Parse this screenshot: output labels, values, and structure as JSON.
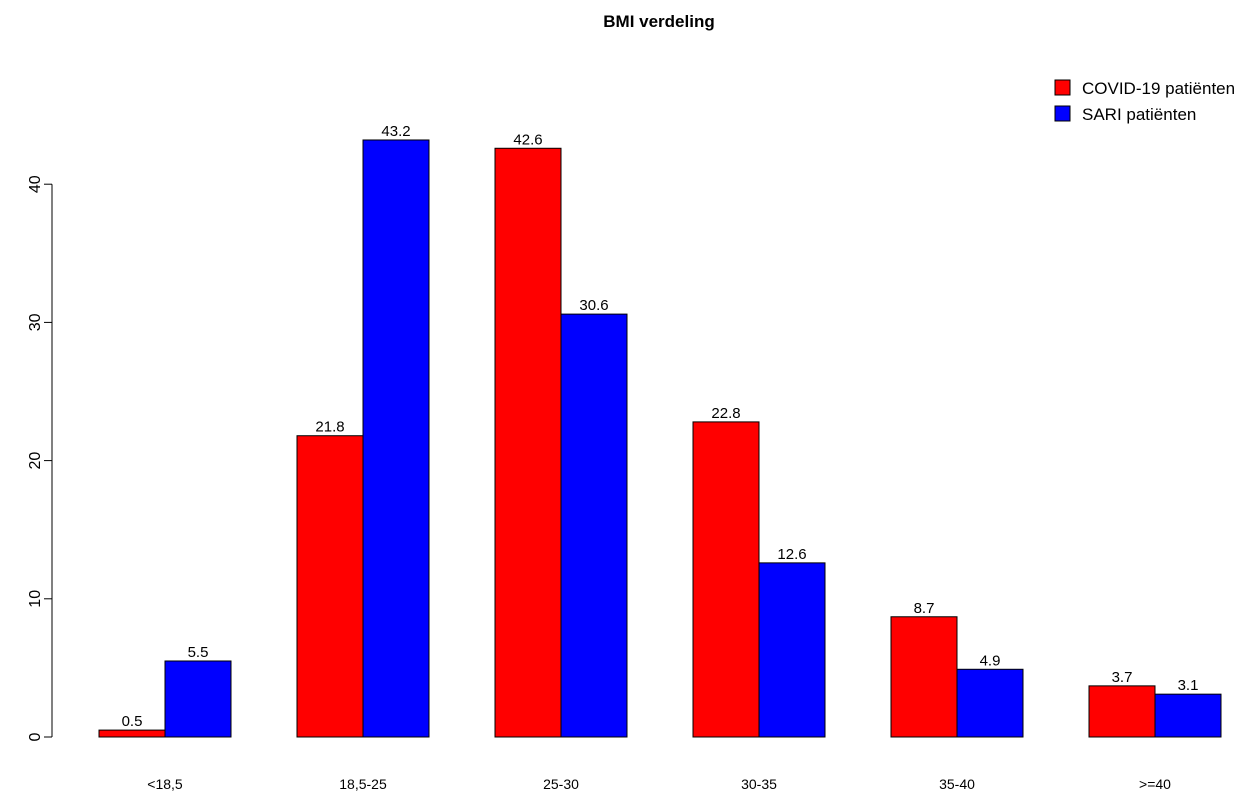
{
  "chart_data": {
    "type": "bar",
    "title": "BMI verdeling",
    "xlabel": "",
    "ylabel": "",
    "categories": [
      "<18,5",
      "18,5-25",
      "25-30",
      "30-35",
      "35-40",
      ">=40"
    ],
    "series": [
      {
        "name": "COVID-19 patiënten",
        "color": "#ff0000",
        "values": [
          0.5,
          21.8,
          42.6,
          22.8,
          8.7,
          3.7
        ]
      },
      {
        "name": "SARI patiënten",
        "color": "#0000ff",
        "values": [
          5.5,
          43.2,
          30.6,
          12.6,
          4.9,
          3.1
        ]
      }
    ],
    "ylim": [
      0,
      45
    ],
    "yticks": [
      0,
      10,
      20,
      30,
      40
    ],
    "grid": false,
    "legend_position": "top-right",
    "value_labels": true
  }
}
